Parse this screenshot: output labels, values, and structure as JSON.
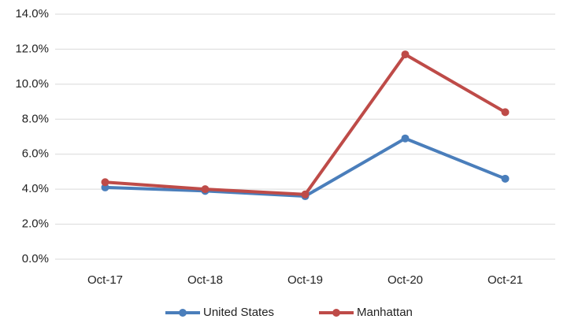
{
  "chart_data": {
    "type": "line",
    "categories": [
      "Oct-17",
      "Oct-18",
      "Oct-19",
      "Oct-20",
      "Oct-21"
    ],
    "series": [
      {
        "name": "United States",
        "color": "#4a7ebb",
        "values": [
          4.1,
          3.9,
          3.6,
          6.9,
          4.6
        ]
      },
      {
        "name": "Manhattan",
        "color": "#be4b48",
        "values": [
          4.4,
          4.0,
          3.7,
          11.7,
          8.4
        ]
      }
    ],
    "ylim": [
      0,
      14
    ],
    "yticks": [
      {
        "value": 0,
        "label": "0.0%"
      },
      {
        "value": 2,
        "label": "2.0%"
      },
      {
        "value": 4,
        "label": "4.0%"
      },
      {
        "value": 6,
        "label": "6.0%"
      },
      {
        "value": 8,
        "label": "8.0%"
      },
      {
        "value": 10,
        "label": "10.0%"
      },
      {
        "value": 12,
        "label": "12.0%"
      },
      {
        "value": 14,
        "label": "14.0%"
      }
    ],
    "grid": true,
    "legend": "bottom"
  }
}
